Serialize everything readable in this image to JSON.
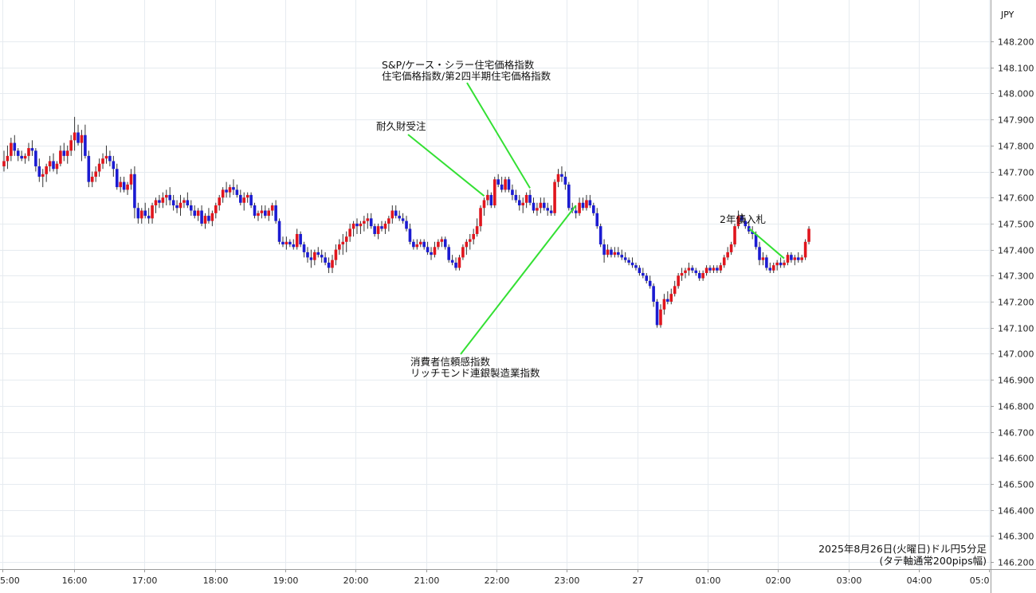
{
  "currency": "JPY",
  "caption": {
    "line1": "2025年8月26日(火曜日)ドル円5分足",
    "line2": "(タテ軸通常200pips幅)"
  },
  "chart_data": {
    "type": "candlestick",
    "currency": "JPY",
    "yticks": [
      "146.200",
      "146.300",
      "146.400",
      "146.500",
      "146.600",
      "146.700",
      "146.800",
      "146.900",
      "147.000",
      "147.100",
      "147.200",
      "147.300",
      "147.400",
      "147.500",
      "147.600",
      "147.700",
      "147.800",
      "147.900",
      "148.000",
      "148.100",
      "148.200"
    ],
    "ylim": [
      146.2,
      148.2
    ],
    "xticks": [
      "5:00",
      "16:00",
      "17:00",
      "18:00",
      "19:00",
      "20:00",
      "21:00",
      "22:00",
      "23:00",
      "27",
      "01:00",
      "02:00",
      "03:00",
      "04:00",
      "05:0"
    ],
    "annotations": [
      {
        "lines": [
          "S&P/ケース・シラー住宅価格指数",
          "住宅価格指数/第2四半期住宅価格指数"
        ],
        "bar": 149
      },
      {
        "lines": [
          "耐久財受注"
        ],
        "bar": 136
      },
      {
        "lines": [
          "消費者信頼感指数",
          "リッチモンド連銀製造業指数"
        ],
        "bar": 162
      },
      {
        "lines": [
          "2年債入札"
        ],
        "bar": 221
      }
    ],
    "up_color": "#e0151d",
    "down_color": "#1b1bd1",
    "wick_color": "#333333",
    "ohlc": [
      [
        147.72,
        147.78,
        147.7,
        147.74
      ],
      [
        147.74,
        147.8,
        147.71,
        147.76
      ],
      [
        147.76,
        147.83,
        147.74,
        147.81
      ],
      [
        147.81,
        147.84,
        147.76,
        147.78
      ],
      [
        147.78,
        147.79,
        147.74,
        147.76
      ],
      [
        147.76,
        147.78,
        147.74,
        147.75
      ],
      [
        147.75,
        147.77,
        147.73,
        147.76
      ],
      [
        147.76,
        147.81,
        147.74,
        147.79
      ],
      [
        147.79,
        147.82,
        147.76,
        147.78
      ],
      [
        147.78,
        147.79,
        147.7,
        147.72
      ],
      [
        147.72,
        147.75,
        147.66,
        147.68
      ],
      [
        147.68,
        147.71,
        147.64,
        147.69
      ],
      [
        147.69,
        147.73,
        147.66,
        147.72
      ],
      [
        147.72,
        147.76,
        147.7,
        147.74
      ],
      [
        147.74,
        147.77,
        147.7,
        147.71
      ],
      [
        147.71,
        147.74,
        147.69,
        147.73
      ],
      [
        147.73,
        147.8,
        147.72,
        147.78
      ],
      [
        147.78,
        147.81,
        147.74,
        147.76
      ],
      [
        147.76,
        147.8,
        147.73,
        147.78
      ],
      [
        147.78,
        147.84,
        147.76,
        147.82
      ],
      [
        147.82,
        147.91,
        147.78,
        147.85
      ],
      [
        147.85,
        147.88,
        147.8,
        147.81
      ],
      [
        147.81,
        147.86,
        147.74,
        147.84
      ],
      [
        147.84,
        147.88,
        147.75,
        147.76
      ],
      [
        147.76,
        147.78,
        147.64,
        147.66
      ],
      [
        147.66,
        147.7,
        147.64,
        147.68
      ],
      [
        147.68,
        147.72,
        147.66,
        147.7
      ],
      [
        147.7,
        147.75,
        147.68,
        147.73
      ],
      [
        147.73,
        147.77,
        147.71,
        147.75
      ],
      [
        147.75,
        147.8,
        147.73,
        147.76
      ],
      [
        147.76,
        147.78,
        147.72,
        147.74
      ],
      [
        147.74,
        147.76,
        147.68,
        147.71
      ],
      [
        147.71,
        147.73,
        147.63,
        147.64
      ],
      [
        147.64,
        147.68,
        147.62,
        147.66
      ],
      [
        147.66,
        147.68,
        147.62,
        147.63
      ],
      [
        147.63,
        147.66,
        147.61,
        147.65
      ],
      [
        147.65,
        147.71,
        147.63,
        147.69
      ],
      [
        147.69,
        147.72,
        147.52,
        147.56
      ],
      [
        147.56,
        147.58,
        147.5,
        147.52
      ],
      [
        147.52,
        147.56,
        147.5,
        147.55
      ],
      [
        147.55,
        147.58,
        147.52,
        147.53
      ],
      [
        147.53,
        147.56,
        147.5,
        147.52
      ],
      [
        147.52,
        147.58,
        147.5,
        147.57
      ],
      [
        147.57,
        147.6,
        147.54,
        147.59
      ],
      [
        147.59,
        147.61,
        147.56,
        147.58
      ],
      [
        147.58,
        147.62,
        147.56,
        147.6
      ],
      [
        147.6,
        147.63,
        147.57,
        147.61
      ],
      [
        147.61,
        147.64,
        147.57,
        147.59
      ],
      [
        147.59,
        147.61,
        147.55,
        147.57
      ],
      [
        147.57,
        147.59,
        147.54,
        147.56
      ],
      [
        147.56,
        147.61,
        147.53,
        147.58
      ],
      [
        147.58,
        147.6,
        147.56,
        147.59
      ],
      [
        147.59,
        147.62,
        147.56,
        147.57
      ],
      [
        147.57,
        147.59,
        147.53,
        147.55
      ],
      [
        147.55,
        147.57,
        147.52,
        147.53
      ],
      [
        147.53,
        147.56,
        147.51,
        147.55
      ],
      [
        147.55,
        147.57,
        147.49,
        147.5
      ],
      [
        147.5,
        147.54,
        147.48,
        147.53
      ],
      [
        147.53,
        147.56,
        147.5,
        147.51
      ],
      [
        147.51,
        147.55,
        147.49,
        147.54
      ],
      [
        147.54,
        147.58,
        147.52,
        147.57
      ],
      [
        147.57,
        147.61,
        147.55,
        147.6
      ],
      [
        147.6,
        147.64,
        147.58,
        147.63
      ],
      [
        147.63,
        147.66,
        147.6,
        147.62
      ],
      [
        147.62,
        147.65,
        147.6,
        147.64
      ],
      [
        147.64,
        147.67,
        147.61,
        147.63
      ],
      [
        147.63,
        147.65,
        147.6,
        147.61
      ],
      [
        147.61,
        147.63,
        147.57,
        147.58
      ],
      [
        147.58,
        147.62,
        147.55,
        147.6
      ],
      [
        147.6,
        147.62,
        147.58,
        147.61
      ],
      [
        147.61,
        147.62,
        147.56,
        147.57
      ],
      [
        147.57,
        147.58,
        147.52,
        147.53
      ],
      [
        147.53,
        147.55,
        147.51,
        147.54
      ],
      [
        147.54,
        147.57,
        147.52,
        147.55
      ],
      [
        147.55,
        147.57,
        147.52,
        147.53
      ],
      [
        147.53,
        147.56,
        147.51,
        147.55
      ],
      [
        147.55,
        147.58,
        147.53,
        147.57
      ],
      [
        147.57,
        147.59,
        147.5,
        147.51
      ],
      [
        147.51,
        147.52,
        147.42,
        147.43
      ],
      [
        147.43,
        147.45,
        147.41,
        147.42
      ],
      [
        147.42,
        147.45,
        147.4,
        147.43
      ],
      [
        147.43,
        147.44,
        147.41,
        147.42
      ],
      [
        147.42,
        147.44,
        147.4,
        147.41
      ],
      [
        147.41,
        147.48,
        147.4,
        147.46
      ],
      [
        147.46,
        147.47,
        147.41,
        147.42
      ],
      [
        147.42,
        147.43,
        147.37,
        147.39
      ],
      [
        147.39,
        147.41,
        147.35,
        147.37
      ],
      [
        147.37,
        147.4,
        147.33,
        147.36
      ],
      [
        147.36,
        147.4,
        147.34,
        147.39
      ],
      [
        147.39,
        147.41,
        147.37,
        147.38
      ],
      [
        147.38,
        147.4,
        147.35,
        147.37
      ],
      [
        147.37,
        147.39,
        147.34,
        147.35
      ],
      [
        147.35,
        147.37,
        147.31,
        147.33
      ],
      [
        147.33,
        147.38,
        147.31,
        147.36
      ],
      [
        147.36,
        147.42,
        147.34,
        147.4
      ],
      [
        147.4,
        147.44,
        147.38,
        147.42
      ],
      [
        147.42,
        147.46,
        147.38,
        147.43
      ],
      [
        147.43,
        147.47,
        147.39,
        147.45
      ],
      [
        147.45,
        147.5,
        147.43,
        147.48
      ],
      [
        147.48,
        147.51,
        147.45,
        147.5
      ],
      [
        147.5,
        147.52,
        147.46,
        147.49
      ],
      [
        147.49,
        147.51,
        147.46,
        147.5
      ],
      [
        147.5,
        147.53,
        147.47,
        147.51
      ],
      [
        147.51,
        147.54,
        147.48,
        147.52
      ],
      [
        147.52,
        147.54,
        147.48,
        147.49
      ],
      [
        147.49,
        147.5,
        147.45,
        147.46
      ],
      [
        147.46,
        147.5,
        147.44,
        147.49
      ],
      [
        147.49,
        147.51,
        147.47,
        147.48
      ],
      [
        147.48,
        147.51,
        147.46,
        147.5
      ],
      [
        147.5,
        147.53,
        147.47,
        147.52
      ],
      [
        147.52,
        147.57,
        147.5,
        147.55
      ],
      [
        147.55,
        147.57,
        147.52,
        147.53
      ],
      [
        147.53,
        147.55,
        147.51,
        147.52
      ],
      [
        147.52,
        147.54,
        147.5,
        147.51
      ],
      [
        147.51,
        147.53,
        147.47,
        147.48
      ],
      [
        147.48,
        147.5,
        147.42,
        147.43
      ],
      [
        147.43,
        147.44,
        147.4,
        147.41
      ],
      [
        147.41,
        147.44,
        147.4,
        147.42
      ],
      [
        147.42,
        147.44,
        147.41,
        147.43
      ],
      [
        147.43,
        147.44,
        147.4,
        147.41
      ],
      [
        147.41,
        147.43,
        147.38,
        147.39
      ],
      [
        147.39,
        147.41,
        147.36,
        147.38
      ],
      [
        147.38,
        147.43,
        147.37,
        147.41
      ],
      [
        147.41,
        147.44,
        147.4,
        147.43
      ],
      [
        147.43,
        147.45,
        147.41,
        147.44
      ],
      [
        147.44,
        147.45,
        147.4,
        147.41
      ],
      [
        147.41,
        147.42,
        147.35,
        147.36
      ],
      [
        147.36,
        147.38,
        147.34,
        147.35
      ],
      [
        147.35,
        147.37,
        147.32,
        147.33
      ],
      [
        147.33,
        147.38,
        147.32,
        147.37
      ],
      [
        147.37,
        147.42,
        147.36,
        147.41
      ],
      [
        147.41,
        147.44,
        147.38,
        147.43
      ],
      [
        147.43,
        147.46,
        147.4,
        147.44
      ],
      [
        147.44,
        147.48,
        147.42,
        147.46
      ],
      [
        147.46,
        147.52,
        147.45,
        147.49
      ],
      [
        147.49,
        147.57,
        147.47,
        147.56
      ],
      [
        147.56,
        147.6,
        147.53,
        147.59
      ],
      [
        147.59,
        147.63,
        147.57,
        147.61
      ],
      [
        147.61,
        147.62,
        147.56,
        147.57
      ],
      [
        147.57,
        147.68,
        147.56,
        147.67
      ],
      [
        147.67,
        147.69,
        147.64,
        147.65
      ],
      [
        147.65,
        147.68,
        147.62,
        147.63
      ],
      [
        147.63,
        147.68,
        147.62,
        147.67
      ],
      [
        147.67,
        147.68,
        147.62,
        147.63
      ],
      [
        147.63,
        147.65,
        147.59,
        147.61
      ],
      [
        147.61,
        147.63,
        147.58,
        147.59
      ],
      [
        147.59,
        147.61,
        147.55,
        147.57
      ],
      [
        147.57,
        147.6,
        147.54,
        147.58
      ],
      [
        147.58,
        147.62,
        147.56,
        147.61
      ],
      [
        147.61,
        147.63,
        147.57,
        147.58
      ],
      [
        147.58,
        147.6,
        147.54,
        147.55
      ],
      [
        147.55,
        147.58,
        147.53,
        147.56
      ],
      [
        147.56,
        147.6,
        147.54,
        147.58
      ],
      [
        147.58,
        147.6,
        147.55,
        147.56
      ],
      [
        147.56,
        147.58,
        147.53,
        147.55
      ],
      [
        147.55,
        147.57,
        147.53,
        147.54
      ],
      [
        147.54,
        147.67,
        147.53,
        147.66
      ],
      [
        147.66,
        147.71,
        147.64,
        147.69
      ],
      [
        147.69,
        147.72,
        147.66,
        147.68
      ],
      [
        147.68,
        147.7,
        147.63,
        147.65
      ],
      [
        147.65,
        147.66,
        147.55,
        147.56
      ],
      [
        147.56,
        147.58,
        147.54,
        147.55
      ],
      [
        147.55,
        147.57,
        147.52,
        147.54
      ],
      [
        147.54,
        147.6,
        147.53,
        147.58
      ],
      [
        147.58,
        147.6,
        147.55,
        147.56
      ],
      [
        147.56,
        147.61,
        147.55,
        147.59
      ],
      [
        147.59,
        147.61,
        147.56,
        147.57
      ],
      [
        147.57,
        147.58,
        147.53,
        147.54
      ],
      [
        147.54,
        147.56,
        147.48,
        147.49
      ],
      [
        147.49,
        147.5,
        147.41,
        147.42
      ],
      [
        147.42,
        147.44,
        147.35,
        147.38
      ],
      [
        147.38,
        147.42,
        147.37,
        147.4
      ],
      [
        147.4,
        147.41,
        147.37,
        147.38
      ],
      [
        147.38,
        147.41,
        147.37,
        147.39
      ],
      [
        147.39,
        147.41,
        147.37,
        147.38
      ],
      [
        147.38,
        147.4,
        147.36,
        147.37
      ],
      [
        147.37,
        147.39,
        147.35,
        147.36
      ],
      [
        147.36,
        147.37,
        147.34,
        147.35
      ],
      [
        147.35,
        147.37,
        147.33,
        147.34
      ],
      [
        147.34,
        147.35,
        147.32,
        147.33
      ],
      [
        147.33,
        147.34,
        147.3,
        147.31
      ],
      [
        147.31,
        147.33,
        147.29,
        147.3
      ],
      [
        147.3,
        147.31,
        147.27,
        147.28
      ],
      [
        147.28,
        147.3,
        147.25,
        147.26
      ],
      [
        147.26,
        147.27,
        147.18,
        147.2
      ],
      [
        147.2,
        147.21,
        147.1,
        147.11
      ],
      [
        147.11,
        147.19,
        147.1,
        147.17
      ],
      [
        147.17,
        147.23,
        147.15,
        147.21
      ],
      [
        147.21,
        147.24,
        147.19,
        147.2
      ],
      [
        147.2,
        147.25,
        147.19,
        147.23
      ],
      [
        147.23,
        147.28,
        147.22,
        147.26
      ],
      [
        147.26,
        147.31,
        147.25,
        147.3
      ],
      [
        147.3,
        147.33,
        147.28,
        147.31
      ],
      [
        147.31,
        147.33,
        147.29,
        147.32
      ],
      [
        147.32,
        147.35,
        147.3,
        147.33
      ],
      [
        147.33,
        147.34,
        147.31,
        147.32
      ],
      [
        147.32,
        147.33,
        147.3,
        147.31
      ],
      [
        147.31,
        147.32,
        147.28,
        147.29
      ],
      [
        147.29,
        147.32,
        147.28,
        147.31
      ],
      [
        147.31,
        147.34,
        147.3,
        147.33
      ],
      [
        147.33,
        147.34,
        147.31,
        147.32
      ],
      [
        147.32,
        147.34,
        147.31,
        147.33
      ],
      [
        147.33,
        147.34,
        147.31,
        147.32
      ],
      [
        147.32,
        147.35,
        147.31,
        147.34
      ],
      [
        147.34,
        147.38,
        147.33,
        147.37
      ],
      [
        147.37,
        147.41,
        147.36,
        147.39
      ],
      [
        147.39,
        147.43,
        147.38,
        147.42
      ],
      [
        147.42,
        147.5,
        147.41,
        147.49
      ],
      [
        147.49,
        147.55,
        147.48,
        147.53
      ],
      [
        147.53,
        147.54,
        147.5,
        147.51
      ],
      [
        147.51,
        147.52,
        147.48,
        147.49
      ],
      [
        147.49,
        147.51,
        147.46,
        147.47
      ],
      [
        147.47,
        147.49,
        147.44,
        147.46
      ],
      [
        147.46,
        147.47,
        147.4,
        147.41
      ],
      [
        147.41,
        147.43,
        147.34,
        147.36
      ],
      [
        147.36,
        147.39,
        147.34,
        147.37
      ],
      [
        147.37,
        147.38,
        147.32,
        147.33
      ],
      [
        147.33,
        147.35,
        147.31,
        147.32
      ],
      [
        147.32,
        147.35,
        147.31,
        147.34
      ],
      [
        147.34,
        147.36,
        147.32,
        147.35
      ],
      [
        147.35,
        147.37,
        147.33,
        147.34
      ],
      [
        147.34,
        147.36,
        147.33,
        147.35
      ],
      [
        147.35,
        147.39,
        147.34,
        147.38
      ],
      [
        147.38,
        147.39,
        147.35,
        147.36
      ],
      [
        147.36,
        147.38,
        147.34,
        147.37
      ],
      [
        147.37,
        147.39,
        147.35,
        147.36
      ],
      [
        147.36,
        147.38,
        147.35,
        147.37
      ],
      [
        147.37,
        147.44,
        147.36,
        147.43
      ],
      [
        147.43,
        147.49,
        147.42,
        147.48
      ]
    ]
  }
}
